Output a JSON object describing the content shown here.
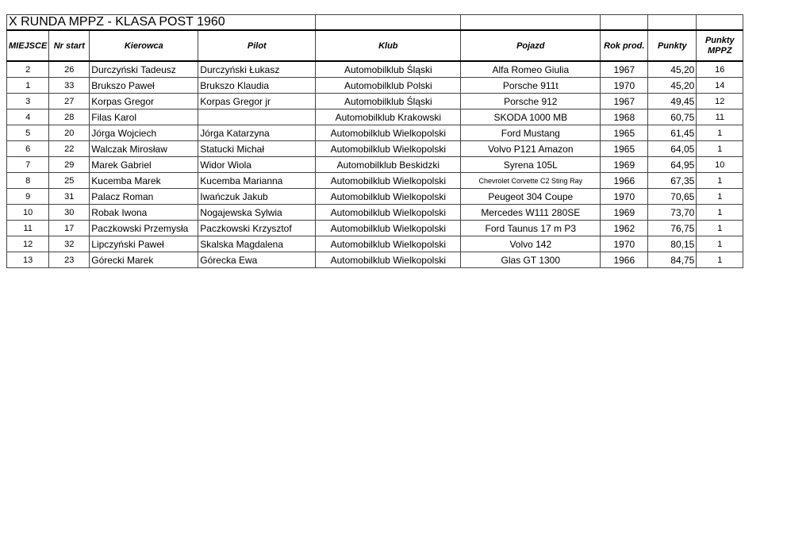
{
  "title": "X RUNDA MPPZ - KLASA POST 1960",
  "headers": [
    "MIEJSCE",
    "Nr start",
    "Kierowca",
    "Pilot",
    "Klub",
    "Pojazd",
    "Rok prod.",
    "Punkty",
    "Punkty MPPZ"
  ],
  "rows": [
    [
      "2",
      "26",
      "Durczyński Tadeusz",
      "Durczyński Łukasz",
      "Automobilklub Śląski",
      "Alfa Romeo Giulia",
      "1967",
      "45,20",
      "16"
    ],
    [
      "1",
      "33",
      "Brukszo Paweł",
      "Brukszo Klaudia",
      "Automobilklub Polski",
      "Porsche 911t",
      "1970",
      "45,20",
      "14"
    ],
    [
      "3",
      "27",
      "Korpas Gregor",
      "Korpas Gregor jr",
      "Automobilklub Śląski",
      "Porsche 912",
      "1967",
      "49,45",
      "12"
    ],
    [
      "4",
      "28",
      "Filas Karol",
      "",
      "Automobilklub Krakowski",
      "SKODA 1000 MB",
      "1968",
      "60,75",
      "11"
    ],
    [
      "5",
      "20",
      "Jórga Wojciech",
      "Jórga Katarzyna",
      "Automobilklub Wielkopolski",
      "Ford Mustang",
      "1965",
      "61,45",
      "1"
    ],
    [
      "6",
      "22",
      "Walczak Mirosław",
      "Statucki Michał",
      "Automobilklub Wielkopolski",
      "Volvo P121 Amazon",
      "1965",
      "64,05",
      "1"
    ],
    [
      "7",
      "29",
      "Marek Gabriel",
      "Widor Wiola",
      "Automobilklub Beskidzki",
      "Syrena 105L",
      "1969",
      "64,95",
      "10"
    ],
    [
      "8",
      "25",
      "Kucemba Marek",
      "Kucemba Marianna",
      "Automobilklub Wielkopolski",
      "Chevrolet Corvette C2 Sting Ray",
      "1966",
      "67,35",
      "1"
    ],
    [
      "9",
      "31",
      "Palacz Roman",
      "Iwańczuk Jakub",
      "Automobilklub Wielkopolski",
      "Peugeot 304 Coupe",
      "1970",
      "70,65",
      "1"
    ],
    [
      "10",
      "30",
      "Robak Iwona",
      "Nogajewska Sylwia",
      "Automobilklub Wielkopolski",
      "Mercedes W111 280SE",
      "1969",
      "73,70",
      "1"
    ],
    [
      "11",
      "17",
      "Paczkowski Przemysła",
      "Paczkowski Krzysztof",
      "Automobilklub Wielkopolski",
      "Ford Taunus 17 m P3",
      "1962",
      "76,75",
      "1"
    ],
    [
      "12",
      "32",
      "Lipczyński Paweł",
      "Skalska Magdalena",
      "Automobilklub Wielkopolski",
      "Volvo 142",
      "1970",
      "80,15",
      "1"
    ],
    [
      "13",
      "23",
      "Górecki Marek",
      "Górecka Ewa",
      "Automobilklub Wielkopolski",
      "Glas GT 1300",
      "1966",
      "84,75",
      "1"
    ]
  ]
}
